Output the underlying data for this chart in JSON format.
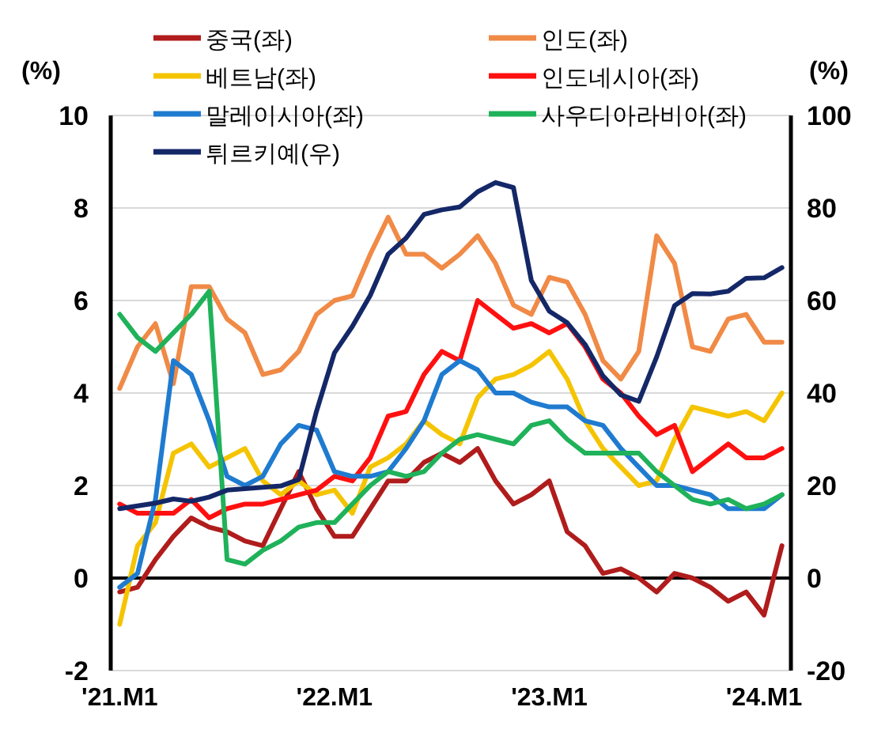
{
  "chart_data": {
    "type": "line",
    "ylabel": "(%)",
    "y2label": "(%)",
    "categories": [
      "'21.M1",
      null,
      null,
      null,
      null,
      null,
      null,
      null,
      null,
      null,
      null,
      null,
      "'22.M1",
      null,
      null,
      null,
      null,
      null,
      null,
      null,
      null,
      null,
      null,
      null,
      "'23.M1",
      null,
      null,
      null,
      null,
      null,
      null,
      null,
      null,
      null,
      null,
      null,
      "'24.M1",
      null
    ],
    "ylim": [
      -2,
      10
    ],
    "yticks": [
      -2,
      0,
      2,
      4,
      6,
      8,
      10
    ],
    "y2lim": [
      -20,
      100
    ],
    "y2ticks": [
      -20,
      0,
      20,
      40,
      60,
      80,
      100
    ],
    "grid": "y",
    "legend": "top",
    "marker": "none",
    "line_style": "solid",
    "ref_lines": [
      {
        "axis": "y",
        "value": 0,
        "color": "#000000"
      }
    ],
    "series": [
      {
        "name": "중국(좌)",
        "color": "#b01c1c",
        "values": [
          -0.3,
          -0.2,
          0.4,
          0.9,
          1.3,
          1.1,
          1.0,
          0.8,
          0.7,
          1.5,
          2.3,
          1.5,
          0.9,
          0.9,
          1.5,
          2.1,
          2.1,
          2.5,
          2.7,
          2.5,
          2.8,
          2.1,
          1.6,
          1.8,
          2.1,
          1.0,
          0.7,
          0.1,
          0.2,
          0.0,
          -0.3,
          0.1,
          0.0,
          -0.2,
          -0.5,
          -0.3,
          -0.8,
          0.7
        ]
      },
      {
        "name": "인도(좌)",
        "color": "#f08a46",
        "values": [
          4.1,
          5.0,
          5.5,
          4.2,
          6.3,
          6.3,
          5.6,
          5.3,
          4.4,
          4.5,
          4.9,
          5.7,
          6.0,
          6.1,
          7.0,
          7.8,
          7.0,
          7.0,
          6.7,
          7.0,
          7.4,
          6.8,
          5.9,
          5.7,
          6.5,
          6.4,
          5.7,
          4.7,
          4.3,
          4.9,
          7.4,
          6.8,
          5.0,
          4.9,
          5.6,
          5.7,
          5.1,
          5.1
        ]
      },
      {
        "name": "베트남(좌)",
        "color": "#f5c400",
        "values": [
          -1.0,
          0.7,
          1.2,
          2.7,
          2.9,
          2.4,
          2.6,
          2.8,
          2.1,
          1.8,
          2.1,
          1.8,
          1.9,
          1.4,
          2.4,
          2.6,
          2.9,
          3.4,
          3.1,
          2.9,
          3.9,
          4.3,
          4.4,
          4.6,
          4.9,
          4.3,
          3.4,
          2.8,
          2.4,
          2.0,
          2.1,
          3.0,
          3.7,
          3.6,
          3.5,
          3.6,
          3.4,
          4.0
        ]
      },
      {
        "name": "인도네시아(좌)",
        "color": "#ff1010",
        "values": [
          1.6,
          1.4,
          1.4,
          1.4,
          1.7,
          1.3,
          1.5,
          1.6,
          1.6,
          1.7,
          1.8,
          1.9,
          2.2,
          2.1,
          2.6,
          3.5,
          3.6,
          4.4,
          4.9,
          4.7,
          6.0,
          5.7,
          5.4,
          5.5,
          5.3,
          5.5,
          5.0,
          4.3,
          4.0,
          3.5,
          3.1,
          3.3,
          2.3,
          2.6,
          2.9,
          2.6,
          2.6,
          2.8
        ]
      },
      {
        "name": "말레이시아(좌)",
        "color": "#1f7bd0",
        "values": [
          -0.2,
          0.1,
          1.7,
          4.7,
          4.4,
          3.4,
          2.2,
          2.0,
          2.2,
          2.9,
          3.3,
          3.2,
          2.3,
          2.2,
          2.2,
          2.3,
          2.8,
          3.4,
          4.4,
          4.7,
          4.5,
          4.0,
          4.0,
          3.8,
          3.7,
          3.7,
          3.4,
          3.3,
          2.8,
          2.4,
          2.0,
          2.0,
          1.9,
          1.8,
          1.5,
          1.5,
          1.5,
          1.8
        ]
      },
      {
        "name": "사우디아라비아(좌)",
        "color": "#1fb25a",
        "values": [
          5.7,
          5.2,
          4.9,
          5.3,
          5.7,
          6.2,
          0.4,
          0.3,
          0.6,
          0.8,
          1.1,
          1.2,
          1.2,
          1.6,
          2.0,
          2.3,
          2.2,
          2.3,
          2.7,
          3.0,
          3.1,
          3.0,
          2.9,
          3.3,
          3.4,
          3.0,
          2.7,
          2.7,
          2.7,
          2.7,
          2.3,
          2.0,
          1.7,
          1.6,
          1.7,
          1.5,
          1.6,
          1.8
        ]
      },
      {
        "name": "튀르키예(우)",
        "color": "#142868",
        "axis": "y2",
        "values": [
          15.0,
          15.6,
          16.2,
          17.1,
          16.6,
          17.5,
          19.0,
          19.3,
          19.6,
          19.9,
          21.3,
          36.1,
          48.7,
          54.4,
          61.1,
          70.0,
          73.5,
          78.6,
          79.6,
          80.2,
          83.5,
          85.5,
          84.4,
          64.3,
          57.7,
          55.2,
          50.5,
          43.7,
          39.6,
          38.2,
          47.8,
          58.9,
          61.5,
          61.4,
          62.0,
          64.8,
          64.9,
          67.1
        ]
      }
    ]
  }
}
